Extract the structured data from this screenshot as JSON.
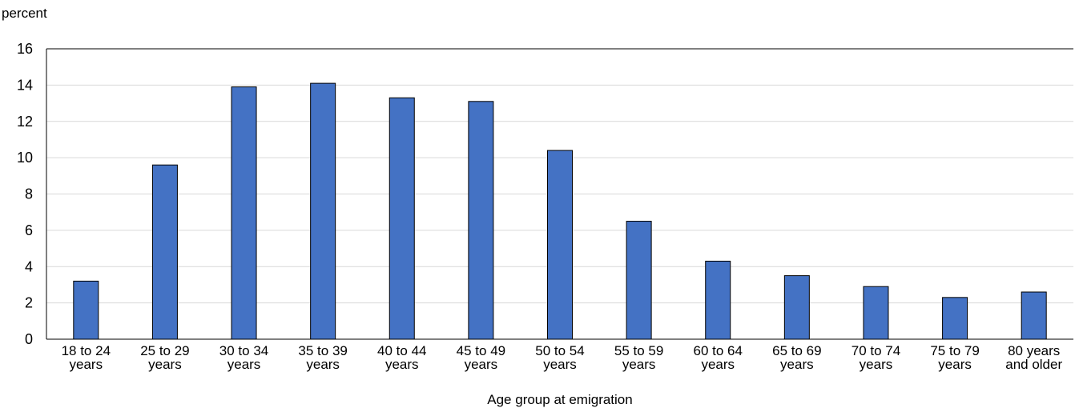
{
  "chart_data": {
    "type": "bar",
    "title": "",
    "ylabel": "percent",
    "xlabel": "Age group at emigration",
    "ylim": [
      0,
      16
    ],
    "yticks": [
      0,
      2,
      4,
      6,
      8,
      10,
      12,
      14,
      16
    ],
    "grid": true,
    "legend": "none",
    "categories": [
      [
        "18 to 24",
        "years"
      ],
      [
        "25 to 29",
        "years"
      ],
      [
        "30 to 34",
        "years"
      ],
      [
        "35 to 39",
        "years"
      ],
      [
        "40 to 44",
        "years"
      ],
      [
        "45 to 49",
        "years"
      ],
      [
        "50 to 54",
        "years"
      ],
      [
        "55 to 59",
        "years"
      ],
      [
        "60 to 64",
        "years"
      ],
      [
        "65 to 69",
        "years"
      ],
      [
        "70 to 74",
        "years"
      ],
      [
        "75 to 79",
        "years"
      ],
      [
        "80 years",
        "and older"
      ]
    ],
    "values": [
      3.2,
      9.6,
      13.9,
      14.1,
      13.3,
      13.1,
      10.4,
      6.5,
      4.3,
      3.5,
      2.9,
      2.3,
      2.6
    ],
    "colors": {
      "bar_fill": "#4472C4",
      "bar_stroke": "#000000",
      "grid": "#D9D9D9",
      "axis": "#000000"
    }
  }
}
